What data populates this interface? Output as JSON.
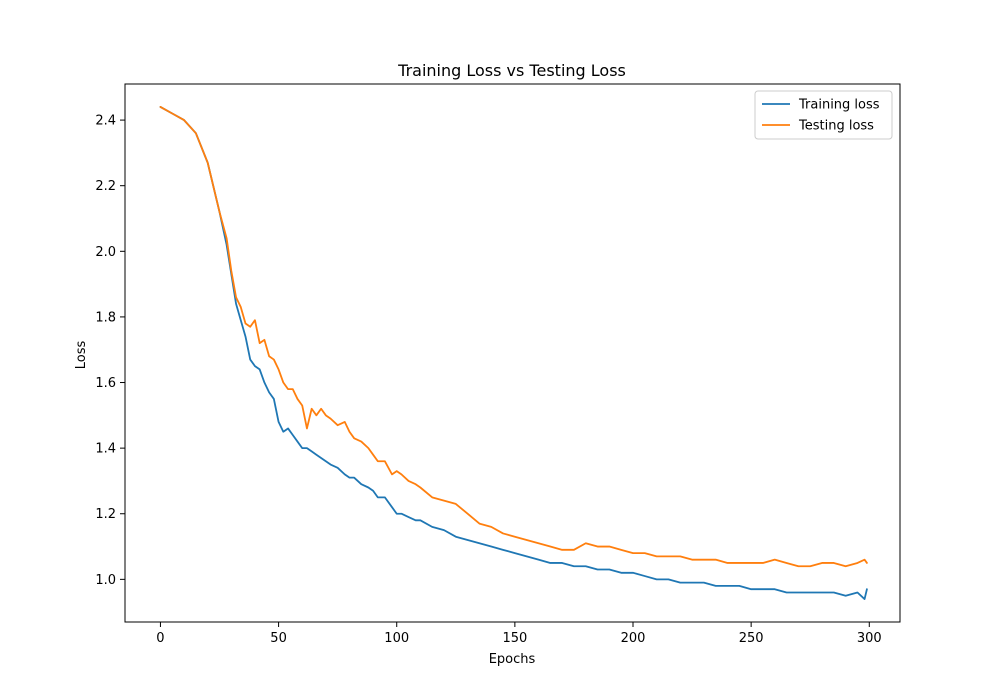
{
  "chart_data": {
    "type": "line",
    "title": "Training Loss vs Testing Loss",
    "xlabel": "Epochs",
    "ylabel": "Loss",
    "xlim": [
      -15,
      313
    ],
    "ylim": [
      0.87,
      2.51
    ],
    "xticks": [
      0,
      50,
      100,
      150,
      200,
      250,
      300
    ],
    "yticks": [
      1.0,
      1.2,
      1.4,
      1.6,
      1.8,
      2.0,
      2.2,
      2.4
    ],
    "ytick_labels": [
      "1.0",
      "1.2",
      "1.4",
      "1.6",
      "1.8",
      "2.0",
      "2.2",
      "2.4"
    ],
    "grid": false,
    "legend_position": "top-right",
    "series": [
      {
        "name": "Training loss",
        "color": "#1f77b4",
        "x": [
          0,
          5,
          10,
          15,
          20,
          25,
          28,
          30,
          32,
          34,
          36,
          38,
          40,
          42,
          44,
          46,
          48,
          50,
          52,
          54,
          56,
          58,
          60,
          62,
          64,
          66,
          68,
          70,
          72,
          75,
          78,
          80,
          82,
          85,
          88,
          90,
          92,
          95,
          98,
          100,
          102,
          105,
          108,
          110,
          115,
          120,
          125,
          130,
          135,
          140,
          145,
          150,
          155,
          160,
          165,
          170,
          175,
          180,
          185,
          190,
          195,
          200,
          205,
          210,
          215,
          220,
          225,
          230,
          235,
          240,
          245,
          250,
          255,
          260,
          265,
          270,
          275,
          280,
          285,
          290,
          295,
          298,
          299
        ],
        "y": [
          2.44,
          2.42,
          2.4,
          2.36,
          2.27,
          2.12,
          2.02,
          1.93,
          1.84,
          1.79,
          1.74,
          1.67,
          1.65,
          1.64,
          1.6,
          1.57,
          1.55,
          1.48,
          1.45,
          1.46,
          1.44,
          1.42,
          1.4,
          1.4,
          1.39,
          1.38,
          1.37,
          1.36,
          1.35,
          1.34,
          1.32,
          1.31,
          1.31,
          1.29,
          1.28,
          1.27,
          1.25,
          1.25,
          1.22,
          1.2,
          1.2,
          1.19,
          1.18,
          1.18,
          1.16,
          1.15,
          1.13,
          1.12,
          1.11,
          1.1,
          1.09,
          1.08,
          1.07,
          1.06,
          1.05,
          1.05,
          1.04,
          1.04,
          1.03,
          1.03,
          1.02,
          1.02,
          1.01,
          1.0,
          1.0,
          0.99,
          0.99,
          0.99,
          0.98,
          0.98,
          0.98,
          0.97,
          0.97,
          0.97,
          0.96,
          0.96,
          0.96,
          0.96,
          0.96,
          0.95,
          0.96,
          0.94,
          0.97
        ]
      },
      {
        "name": "Testing loss",
        "color": "#ff7f0e",
        "x": [
          0,
          5,
          10,
          15,
          20,
          25,
          28,
          30,
          32,
          34,
          36,
          38,
          40,
          42,
          44,
          46,
          48,
          50,
          52,
          54,
          56,
          58,
          60,
          62,
          64,
          66,
          68,
          70,
          72,
          75,
          78,
          80,
          82,
          85,
          88,
          90,
          92,
          95,
          98,
          100,
          102,
          105,
          108,
          110,
          115,
          120,
          125,
          130,
          135,
          140,
          145,
          150,
          155,
          160,
          165,
          170,
          175,
          180,
          185,
          190,
          195,
          200,
          205,
          210,
          215,
          220,
          225,
          230,
          235,
          240,
          245,
          250,
          255,
          260,
          265,
          270,
          275,
          280,
          285,
          290,
          295,
          298,
          299
        ],
        "y": [
          2.44,
          2.42,
          2.4,
          2.36,
          2.27,
          2.12,
          2.04,
          1.94,
          1.86,
          1.83,
          1.78,
          1.77,
          1.79,
          1.72,
          1.73,
          1.68,
          1.67,
          1.64,
          1.6,
          1.58,
          1.58,
          1.55,
          1.53,
          1.46,
          1.52,
          1.5,
          1.52,
          1.5,
          1.49,
          1.47,
          1.48,
          1.45,
          1.43,
          1.42,
          1.4,
          1.38,
          1.36,
          1.36,
          1.32,
          1.33,
          1.32,
          1.3,
          1.29,
          1.28,
          1.25,
          1.24,
          1.23,
          1.2,
          1.17,
          1.16,
          1.14,
          1.13,
          1.12,
          1.11,
          1.1,
          1.09,
          1.09,
          1.11,
          1.1,
          1.1,
          1.09,
          1.08,
          1.08,
          1.07,
          1.07,
          1.07,
          1.06,
          1.06,
          1.06,
          1.05,
          1.05,
          1.05,
          1.05,
          1.06,
          1.05,
          1.04,
          1.04,
          1.05,
          1.05,
          1.04,
          1.05,
          1.06,
          1.05
        ]
      }
    ]
  }
}
